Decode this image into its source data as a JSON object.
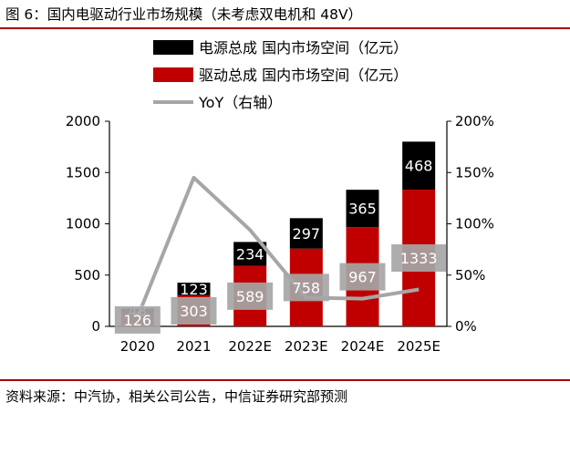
{
  "title": "图 6：国内电驱动行业市场规模（未考虑双电机和 48V）",
  "source": "资料来源：中汽协，相关公司公告，中信证券研究部预测",
  "colors": {
    "power_series": "#000000",
    "drive_series": "#c00000",
    "yoy_line": "#a6a6a6",
    "label_box": "#a6a6a6",
    "rule": "#a80000"
  },
  "chart_data": {
    "type": "bar",
    "stacked": true,
    "title": "图 6：国内电驱动行业市场规模（未考虑双电机和 48V）",
    "categories": [
      "2020",
      "2021",
      "2022E",
      "2023E",
      "2024E",
      "2025E"
    ],
    "series": [
      {
        "name": "驱动总成 国内市场空间（亿元）",
        "type": "bar",
        "values": [
          126,
          303,
          589,
          758,
          967,
          1333
        ],
        "color": "#c00000",
        "label_style": "boxed"
      },
      {
        "name": "电源总成 国内市场空间（亿元）",
        "type": "bar",
        "values": [
          48,
          123,
          234,
          297,
          365,
          468
        ],
        "color": "#000000",
        "label_style": "plain"
      },
      {
        "name": "YoY（右轴）",
        "type": "line",
        "axis": "right",
        "values": [
          0.09,
          1.45,
          0.94,
          0.28,
          0.27,
          0.36
        ],
        "color": "#a6a6a6"
      }
    ],
    "legend": {
      "position": "top",
      "entries": [
        "电源总成 国内市场空间（亿元）",
        "驱动总成 国内市场空间（亿元）",
        "YoY（右轴）"
      ]
    },
    "left_axis": {
      "ylim": [
        0,
        2000
      ],
      "ticks": [
        "0",
        "500",
        "1000",
        "1500",
        "2000"
      ]
    },
    "right_axis": {
      "ylim": [
        0,
        2
      ],
      "ticks": [
        "0%",
        "50%",
        "100%",
        "150%",
        "200%"
      ]
    },
    "grid": false
  }
}
